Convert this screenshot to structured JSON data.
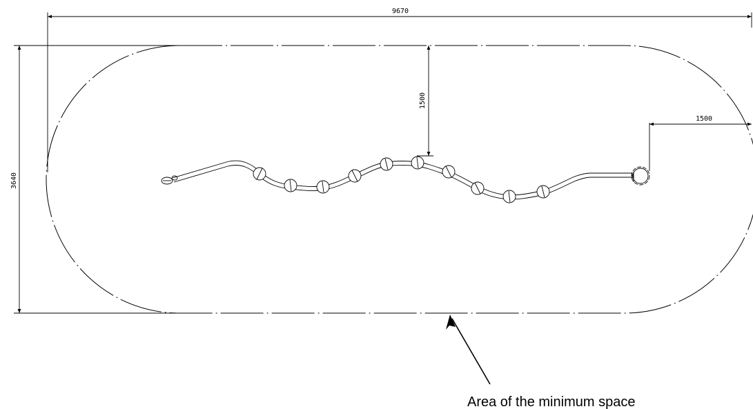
{
  "dimensions": {
    "overall_length": "9670",
    "overall_width": "3640",
    "clearance_side": "1500",
    "clearance_end": "1500"
  },
  "caption": "Area of the minimum space",
  "colors": {
    "line": "#000000",
    "background": "#ffffff"
  }
}
